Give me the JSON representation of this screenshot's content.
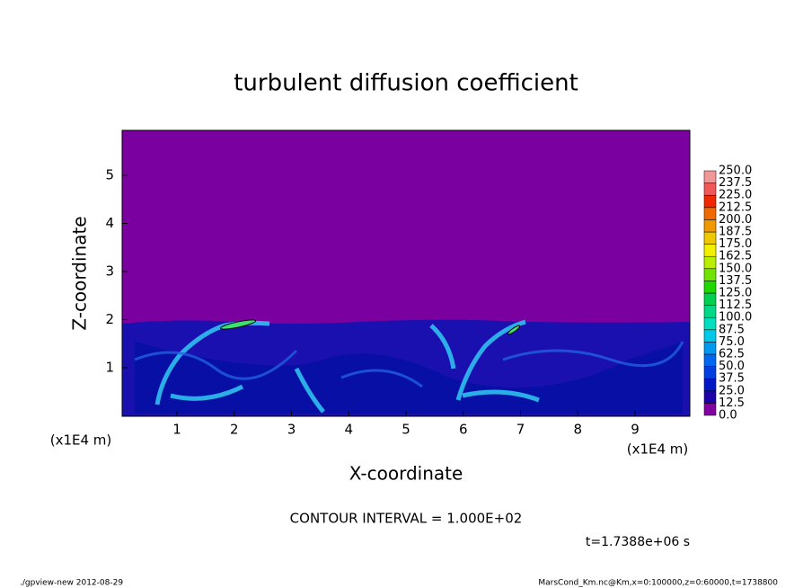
{
  "chart_data": {
    "type": "contour",
    "title": "turbulent diffusion coefficient",
    "x_label": "X-coordinate",
    "y_label": "Z-coordinate",
    "x_unit_label": "(x1E4 m)",
    "y_unit_label": "(x1E4 m)",
    "xlim": [
      0,
      10
    ],
    "ylim": [
      0,
      6
    ],
    "xticks": [
      1,
      2,
      3,
      4,
      5,
      6,
      7,
      8,
      9
    ],
    "yticks": [
      1,
      2,
      3,
      4,
      5
    ],
    "colorbar": {
      "levels": [
        {
          "value": 0,
          "label": "0.0"
        },
        {
          "value": 12.5,
          "label": "12.5"
        },
        {
          "value": 25,
          "label": "25.0"
        },
        {
          "value": 37.5,
          "label": "37.5"
        },
        {
          "value": 50,
          "label": "50.0"
        },
        {
          "value": 62.5,
          "label": "62.5"
        },
        {
          "value": 75,
          "label": "75.0"
        },
        {
          "value": 87.5,
          "label": "87.5"
        },
        {
          "value": 100,
          "label": "100.0"
        },
        {
          "value": 112.5,
          "label": "112.5"
        },
        {
          "value": 125,
          "label": "125.0"
        },
        {
          "value": 137.5,
          "label": "137.5"
        },
        {
          "value": 150,
          "label": "150.0"
        },
        {
          "value": 162.5,
          "label": "162.5"
        },
        {
          "value": 175,
          "label": "175.0"
        },
        {
          "value": 187.5,
          "label": "187.5"
        },
        {
          "value": 200,
          "label": "200.0"
        },
        {
          "value": 212.5,
          "label": "212.5"
        },
        {
          "value": 225,
          "label": "225.0"
        },
        {
          "value": 237.5,
          "label": "237.5"
        },
        {
          "value": 250,
          "label": "250.0"
        }
      ],
      "colors": [
        "#8000a0",
        "#1e00a8",
        "#0018c8",
        "#0040e0",
        "#0068f0",
        "#0098f0",
        "#00c8e8",
        "#00e0c0",
        "#00d888",
        "#00d050",
        "#20d800",
        "#70e400",
        "#b8ee00",
        "#f0f000",
        "#f0c800",
        "#f09800",
        "#f06800",
        "#f02800",
        "#f05858",
        "#f09898"
      ]
    },
    "contour_interval": "CONTOUR INTERVAL = 1.000E+02",
    "time_label": "t=1.7388e+06 s",
    "footer_left": "./gpview-new  2012-08-29",
    "footer_right": "MarsCond_Km.nc@Km,x=0:100000,z=0:60000,t=1738800"
  }
}
